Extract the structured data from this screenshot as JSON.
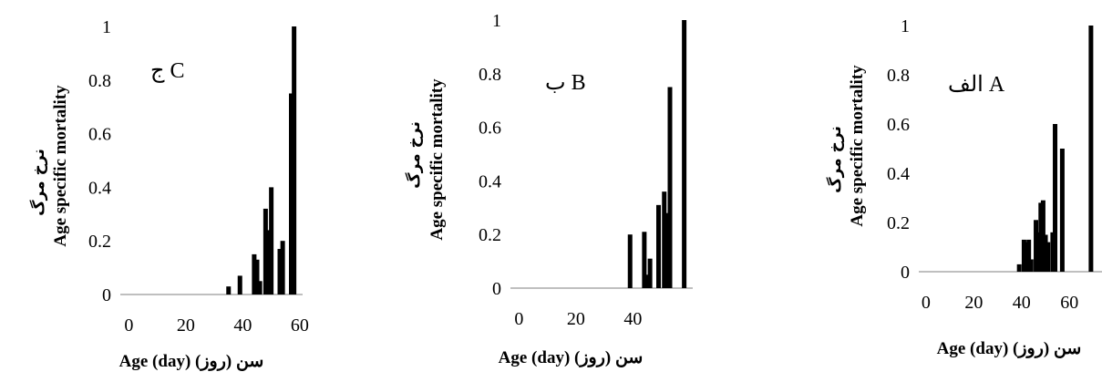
{
  "colors": {
    "bar": "#000000",
    "axis": "#bfbfbf",
    "text": "#000000"
  },
  "chart_data": [
    {
      "type": "bar",
      "panel_label": "ج C",
      "ylabel_fa": "نرخ مرگ",
      "ylabel_en": "Age specific mortality",
      "xlabel": "Age (day) سن (روز)",
      "xlim": [
        -3,
        61
      ],
      "ylim": [
        0,
        1
      ],
      "xticks": [
        0,
        20,
        40,
        60
      ],
      "yticks": [
        "0",
        "0.2",
        "0.4",
        "0.6",
        "0.8",
        "1"
      ],
      "x": [
        35,
        39,
        44,
        45,
        46,
        48,
        49,
        50,
        51,
        53,
        54,
        56,
        57,
        58
      ],
      "values": [
        0.03,
        0.07,
        0.15,
        0.13,
        0.05,
        0.32,
        0.24,
        0.4,
        0.0,
        0.17,
        0.2,
        0.0,
        0.75,
        1.0
      ]
    },
    {
      "type": "bar",
      "panel_label": "ب B",
      "ylabel_fa": "نرخ مرگ",
      "ylabel_en": "Age specific mortality",
      "xlabel": "Age (day) سن (روز)",
      "xlim": [
        -3,
        61
      ],
      "ylim": [
        0,
        1
      ],
      "xticks": [
        0,
        20,
        40
      ],
      "yticks": [
        "0",
        "0.2",
        "0.4",
        "0.6",
        "0.8",
        "1"
      ],
      "x": [
        39,
        44,
        45,
        46,
        49,
        51,
        52,
        53,
        54,
        58
      ],
      "values": [
        0.2,
        0.21,
        0.05,
        0.11,
        0.31,
        0.36,
        0.28,
        0.75,
        0.0,
        1.0
      ]
    },
    {
      "type": "bar",
      "panel_label": "الف A",
      "ylabel_fa": "نرخ مرگ",
      "ylabel_en": "Age specific mortality",
      "xlabel": "Age (day) سن (روز)",
      "xlim": [
        -3,
        74
      ],
      "ylim": [
        0,
        1
      ],
      "xticks": [
        0,
        20,
        40,
        60
      ],
      "yticks": [
        "0",
        "0.2",
        "0.4",
        "0.6",
        "0.8",
        "1"
      ],
      "x": [
        39,
        41,
        42,
        43,
        44,
        46,
        47,
        48,
        49,
        50,
        51,
        53,
        54,
        57,
        69
      ],
      "values": [
        0.03,
        0.13,
        0.12,
        0.13,
        0.05,
        0.21,
        0.16,
        0.28,
        0.29,
        0.15,
        0.12,
        0.16,
        0.6,
        0.5,
        1.0
      ]
    }
  ]
}
